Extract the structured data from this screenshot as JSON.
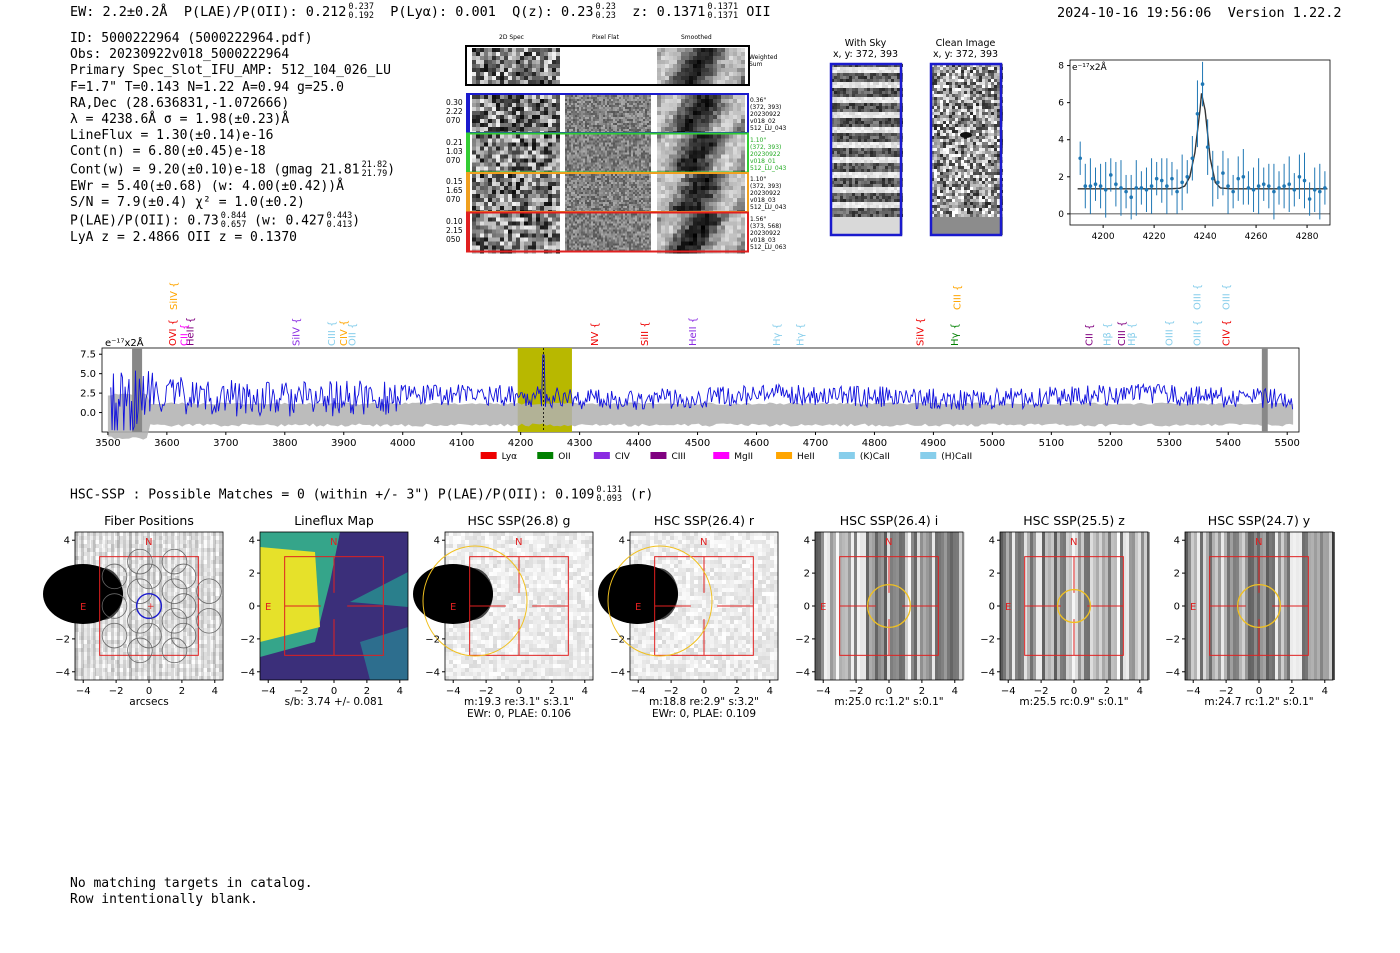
{
  "header": {
    "ew": "EW: 2.2±0.2Å",
    "plae_label": "P(LAE)/P(OII): 0.212",
    "plae_hi": "0.237",
    "plae_lo": "0.192",
    "plya": "P(Lyα): 0.001",
    "qz_label": "Q(z): 0.23",
    "qz_hi": "0.23",
    "qz_lo": "0.23",
    "z_label": "z: 0.1371",
    "z_hi": "0.1371",
    "z_lo": "0.1371",
    "z_line": "OII",
    "timestamp": "2024-10-16 19:56:06",
    "version": "Version 1.22.2"
  },
  "info": {
    "id": "ID: 5000222964 (5000222964.pdf)",
    "obs": "Obs: 20230922v018_5000222964",
    "primary": "Primary Spec_Slot_IFU_AMP: 512_104_026_LU",
    "fiber": "F=1.7\"  T=0.143  N=1.22  A=0.94  g=25.0",
    "radec": "RA,Dec (28.636831,-1.072666)",
    "lambda": "λ = 4238.6Å   σ = 1.98(±0.23)Å",
    "lineflux": "LineFlux = 1.30(±0.14)e-16",
    "contn": "Cont(n) = 6.80(±0.45)e-18",
    "contw": "Cont(w) = 9.20(±0.10)e-18 (gmag 21.81",
    "contw_hi": "21.82",
    "contw_lo": "21.79",
    "contw_end": ")",
    "ewr": "EWr = 5.40(±0.68) (w: 4.00(±0.42))Å",
    "sn": "S/N = 7.9(±0.4)  χ² = 1.0(±0.2)",
    "plae": "P(LAE)/P(OII): 0.73",
    "plae_hi": "0.844",
    "plae_lo": "0.657",
    "plae_w": "(w: 0.427",
    "plae_w_hi": "0.443",
    "plae_w_lo": "0.413",
    "plae_w_end": ")",
    "lya": "LyA z = 2.4866  OII z = 0.1370"
  },
  "cutouts": {
    "col_labels": [
      "2D Spec",
      "Pixel Flat",
      "Smoothed"
    ],
    "weighted": "Weighted Sum",
    "rows": [
      {
        "left": [
          "0.30",
          "2.22",
          "070"
        ],
        "right": [
          "0.36\"",
          "(372, 393)",
          "20230922",
          "v018_02",
          "512_LU_043"
        ],
        "color": "#1a1acd"
      },
      {
        "left": [
          "0.21",
          "1.03",
          "070"
        ],
        "right": [
          "1.10\"",
          "(372, 393)",
          "20230922",
          "v018_01",
          "512_LU_043"
        ],
        "color": "#33cc33"
      },
      {
        "left": [
          "0.15",
          "1.65",
          "070"
        ],
        "right": [
          "1.10\"",
          "(372, 393)",
          "20230922",
          "v018_03",
          "512_LU_043"
        ],
        "color": "#f0a020"
      },
      {
        "left": [
          "0.10",
          "2.15",
          "050"
        ],
        "right": [
          "1.56\"",
          "(373, 568)",
          "20230922",
          "v018_03",
          "512_LU_063"
        ],
        "color": "#e02020"
      }
    ]
  },
  "sky": {
    "with_sky_title": "With Sky",
    "with_sky_coords": "x, y: 372, 393",
    "clean_title": "Clean Image",
    "clean_coords": "x, y: 372, 393"
  },
  "zoom_chart": {
    "unit_label": "e⁻¹⁷x2Å",
    "x_ticks": [
      "4200",
      "4220",
      "4240",
      "4260",
      "4280"
    ],
    "y_ticks": [
      "0",
      "2",
      "4",
      "6",
      "8"
    ]
  },
  "full_spectrum": {
    "unit_label": "e⁻¹⁷x2Å",
    "y_ticks": [
      "7.5",
      "5.0",
      "2.5",
      "0.0"
    ],
    "x_ticks": [
      "3500",
      "3600",
      "3700",
      "3800",
      "3900",
      "4000",
      "4100",
      "4200",
      "4300",
      "4400",
      "4500",
      "4600",
      "4700",
      "4800",
      "4900",
      "5000",
      "5100",
      "5200",
      "5300",
      "5400",
      "5500"
    ],
    "legend": [
      {
        "label": "Lyα",
        "color": "#ee0000"
      },
      {
        "label": "OII",
        "color": "#008000"
      },
      {
        "label": "CIV",
        "color": "#8a2be2"
      },
      {
        "label": "CIII",
        "color": "#800080"
      },
      {
        "label": "MgII",
        "color": "#ff00ff"
      },
      {
        "label": "HeII",
        "color": "#ffa500"
      },
      {
        "label": "(K)CaII",
        "color": "#87ceeb"
      },
      {
        "label": "(H)CaII",
        "color": "#87ceeb"
      }
    ],
    "line_labels": [
      {
        "label": "CII",
        "w": 3630,
        "color": "#ff00ff",
        "row": 2
      },
      {
        "label": "SiIV",
        "w": 3612,
        "color": "#ffa500",
        "row": 0
      },
      {
        "label": "OVI",
        "w": 3610,
        "color": "#ee0000",
        "row": 1
      },
      {
        "label": "HeII",
        "w": 3640,
        "color": "#800080",
        "row": 1
      },
      {
        "label": "SiIV",
        "w": 3820,
        "color": "#8a2be2",
        "row": 1
      },
      {
        "label": "CIII",
        "w": 3880,
        "color": "#87ceeb",
        "row": 1
      },
      {
        "label": "CIV",
        "w": 3900,
        "color": "#ffa500",
        "row": 1
      },
      {
        "label": "OII",
        "w": 3915,
        "color": "#87ceeb",
        "row": 1
      },
      {
        "label": "NV",
        "w": 4326,
        "color": "#ee0000",
        "row": 1
      },
      {
        "label": "SiII",
        "w": 4411,
        "color": "#ee0000",
        "row": 1
      },
      {
        "label": "HeII",
        "w": 4492,
        "color": "#8a2be2",
        "row": 1
      },
      {
        "label": "Hγ",
        "w": 4635,
        "color": "#87ceeb",
        "row": 1
      },
      {
        "label": "Hγ",
        "w": 4675,
        "color": "#87ceeb",
        "row": 1
      },
      {
        "label": "SiIV",
        "w": 4878,
        "color": "#ee0000",
        "row": 1
      },
      {
        "label": "CIII",
        "w": 4941,
        "color": "#ffa500",
        "row": 0
      },
      {
        "label": "Hγ",
        "w": 4937,
        "color": "#008000",
        "row": 1
      },
      {
        "label": "CII",
        "w": 5165,
        "color": "#800080",
        "row": 1
      },
      {
        "label": "Hβ",
        "w": 5195,
        "color": "#87ceeb",
        "row": 1
      },
      {
        "label": "CIII",
        "w": 5220,
        "color": "#800080",
        "row": 1
      },
      {
        "label": "Hβ",
        "w": 5237,
        "color": "#87ceeb",
        "row": 1
      },
      {
        "label": "OIII",
        "w": 5300,
        "color": "#87ceeb",
        "row": 1
      },
      {
        "label": "OIII",
        "w": 5348,
        "color": "#87ceeb",
        "row": 0
      },
      {
        "label": "OIII",
        "w": 5348,
        "color": "#87ceeb",
        "row": 1
      },
      {
        "label": "OIII",
        "w": 5397,
        "color": "#87ceeb",
        "row": 0
      },
      {
        "label": "CIV",
        "w": 5397,
        "color": "#ee0000",
        "row": 1
      }
    ]
  },
  "hsc": {
    "summary": "HSC-SSP : Possible Matches = 0 (within +/- 3\")  P(LAE)/P(OII): 0.109",
    "summary_hi": "0.131",
    "summary_lo": "0.093",
    "summary_end": "(r)",
    "panels": [
      {
        "title": "Fiber Positions",
        "captions": [
          "arcsecs"
        ]
      },
      {
        "title": "Lineflux Map",
        "captions": [
          "s/b: 3.74 +/- 0.081"
        ]
      },
      {
        "title": "HSC SSP(26.8) g",
        "captions": [
          "m:19.3  re:3.1\"  s:3.1\"",
          "EWr: 0, PLAE: 0.106"
        ]
      },
      {
        "title": "HSC SSP(26.4) r",
        "captions": [
          "m:18.8  re:2.9\"  s:3.2\"",
          "EWr: 0, PLAE: 0.109"
        ]
      },
      {
        "title": "HSC SSP(26.4) i",
        "captions": [
          "m:25.0 rc:1.2\"  s:0.1\""
        ]
      },
      {
        "title": "HSC SSP(25.5) z",
        "captions": [
          "m:25.5 rc:0.9\"  s:0.1\""
        ]
      },
      {
        "title": "HSC SSP(24.7) y",
        "captions": [
          "m:24.7 rc:1.2\"  s:0.1\""
        ]
      }
    ],
    "ticks": [
      "−4",
      "−2",
      "0",
      "2",
      "4"
    ],
    "compass_n": "N",
    "compass_e": "E"
  },
  "footer": {
    "line1": "No matching targets in catalog.",
    "line2": "Row intentionally blank."
  },
  "chart_data": [
    {
      "type": "line",
      "title": "",
      "xlabel": "",
      "ylabel": "e-17 x2Å",
      "xlim": [
        4187,
        4289
      ],
      "ylim": [
        -0.6,
        8.3
      ],
      "series": [
        {
          "type": "scatter",
          "x": [
            4191,
            4193,
            4195,
            4197,
            4199,
            4201,
            4203,
            4205,
            4207,
            4209,
            4211,
            4213,
            4215,
            4217,
            4219,
            4221,
            4223,
            4225,
            4227,
            4229,
            4231,
            4233,
            4235,
            4237,
            4239,
            4241,
            4243,
            4245,
            4247,
            4249,
            4251,
            4253,
            4255,
            4257,
            4259,
            4261,
            4263,
            4265,
            4267,
            4269,
            4271,
            4273,
            4275,
            4277,
            4279,
            4281,
            4283,
            4285,
            4287
          ],
          "y": [
            3.0,
            1.5,
            1.5,
            1.6,
            1.5,
            1.3,
            2.1,
            1.6,
            1.4,
            1.2,
            0.9,
            1.4,
            1.4,
            1.3,
            1.5,
            1.9,
            1.8,
            1.5,
            1.9,
            1.2,
            1.7,
            2.0,
            3.0,
            5.4,
            7.0,
            3.6,
            1.9,
            1.7,
            2.2,
            1.5,
            1.2,
            1.9,
            2.0,
            1.4,
            1.3,
            1.5,
            1.6,
            1.5,
            1.2,
            1.4,
            1.5,
            1.6,
            1.3,
            2.0,
            1.8,
            0.8,
            1.3,
            1.2,
            1.4
          ]
        },
        {
          "type": "line",
          "x": [
            4190,
            4226,
            4230,
            4232,
            4234,
            4236,
            4238,
            4238.6,
            4240,
            4242,
            4244,
            4246,
            4250,
            4288
          ],
          "y": [
            1.35,
            1.35,
            1.38,
            1.5,
            2.0,
            3.3,
            5.6,
            6.5,
            5.6,
            3.0,
            1.7,
            1.4,
            1.35,
            1.35
          ]
        }
      ]
    },
    {
      "type": "line",
      "title": "",
      "xlabel": "",
      "ylabel": "",
      "xlim": [
        3490,
        5520
      ],
      "ylim": [
        -2.5,
        8.3
      ],
      "highlight_band": [
        4195,
        4287
      ],
      "emission_line_at": 4238.6,
      "series": [
        {
          "name": "spectrum",
          "values_note_free": true
        }
      ]
    }
  ]
}
